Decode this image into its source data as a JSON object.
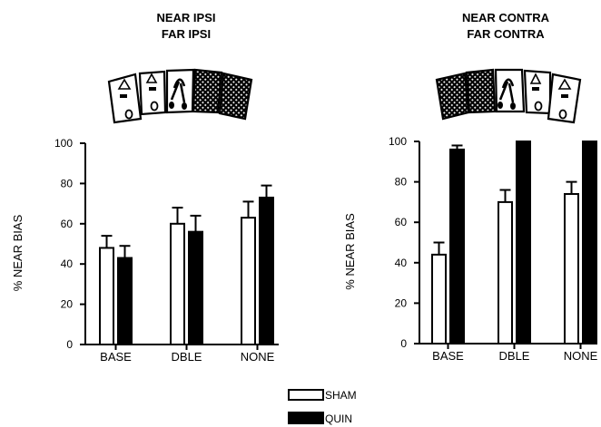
{
  "chart_data": [
    {
      "type": "bar",
      "title_lines": [
        "NEAR IPSI",
        "FAR IPSI"
      ],
      "ylabel": "% NEAR BIAS",
      "ylim": [
        0,
        100
      ],
      "yticks": [
        "0",
        "20",
        "40",
        "60",
        "80",
        "100"
      ],
      "categories": [
        "BASE",
        "DBLE",
        "NONE"
      ],
      "series": [
        {
          "name": "SHAM",
          "values": [
            48,
            60,
            63
          ],
          "errors": [
            6,
            8,
            8
          ]
        },
        {
          "name": "QUIN",
          "values": [
            43,
            56,
            73
          ],
          "errors": [
            6,
            8,
            6
          ]
        }
      ]
    },
    {
      "type": "bar",
      "title_lines": [
        "NEAR CONTRA",
        "FAR CONTRA"
      ],
      "ylabel": "% NEAR BIAS",
      "ylim": [
        0,
        100
      ],
      "yticks": [
        "0",
        "20",
        "40",
        "60",
        "80",
        "100"
      ],
      "categories": [
        "BASE",
        "DBLE",
        "NONE"
      ],
      "series": [
        {
          "name": "SHAM",
          "values": [
            44,
            70,
            74
          ],
          "errors": [
            6,
            6,
            6
          ]
        },
        {
          "name": "QUIN",
          "values": [
            96,
            100,
            100
          ],
          "errors": [
            2,
            0,
            0
          ]
        }
      ]
    }
  ],
  "legend": [
    {
      "label": "SHAM",
      "fill": "#ffffff"
    },
    {
      "label": "QUIN",
      "fill": "#000000"
    }
  ],
  "colors": {
    "sham": "#ffffff",
    "quin": "#000000",
    "ink": "#000000"
  }
}
